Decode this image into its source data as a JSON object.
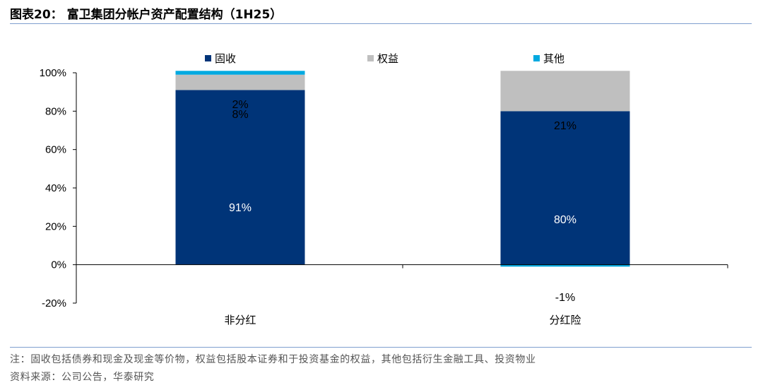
{
  "figure": {
    "title": "图表20： 富卫集团分帐户资产配置结构（1H25）",
    "note": "注：固收包括债券和现金及现金等价物，权益包括股本证券和于投资基金的权益，其他包括衍生金融工具、投资物业",
    "source": "资料来源：公司公告，华泰研究"
  },
  "colors": {
    "fixed_income": "#003478",
    "equity": "#bfbfbf",
    "other": "#00a9e0",
    "rule": "#7f9fcf"
  },
  "chart_data": {
    "type": "bar",
    "stacked": true,
    "categories": [
      "非分红",
      "分红险"
    ],
    "series": [
      {
        "name": "固收",
        "values": [
          91,
          80
        ],
        "labels": [
          "91%",
          "80%"
        ]
      },
      {
        "name": "权益",
        "values": [
          8,
          21
        ],
        "labels": [
          "8%",
          "21%"
        ]
      },
      {
        "name": "其他",
        "values": [
          2,
          -1
        ],
        "labels": [
          "2%",
          "-1%"
        ]
      }
    ],
    "ylim": [
      -20,
      100
    ],
    "yticks": [
      -20,
      0,
      20,
      40,
      60,
      80,
      100
    ],
    "ytick_labels": [
      "-20%",
      "0%",
      "20%",
      "40%",
      "60%",
      "80%",
      "100%"
    ],
    "legend_position": "top",
    "grid": false
  }
}
